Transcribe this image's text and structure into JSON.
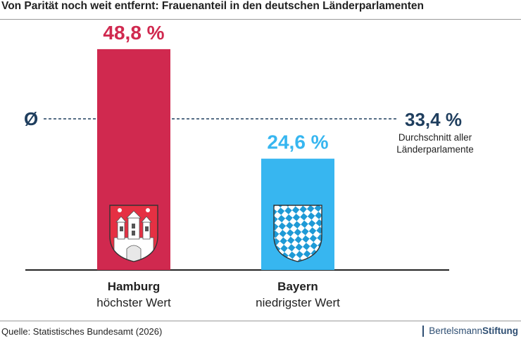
{
  "title": "Von Parität noch weit entfernt: Frauenanteil in den deutschen Länderparlamenten",
  "source": "Quelle: Statistisches Bundesamt (2026)",
  "brand": {
    "part1": "Bertelsmann",
    "part2": "Stiftung"
  },
  "colors": {
    "hamburg": "#d0294f",
    "bayern": "#37b6f0",
    "average": "#1f3e5e",
    "axis": "#222222"
  },
  "chart_data": {
    "type": "bar",
    "categories": [
      "Hamburg",
      "Bayern"
    ],
    "sublabels": [
      "höchster Wert",
      "niedrigster Wert"
    ],
    "values": [
      48.8,
      24.6
    ],
    "value_labels": [
      "48,8 %",
      "24,6 %"
    ],
    "bar_colors": [
      "#d0294f",
      "#37b6f0"
    ],
    "icons": [
      "hamburg-coat-of-arms-icon",
      "bavaria-coat-of-arms-icon"
    ],
    "average": {
      "value": 33.4,
      "symbol": "Ø",
      "label": "33,4 %",
      "caption_line1": "Durchschnitt aller",
      "caption_line2": "Länderparlamente"
    },
    "ylim": [
      0,
      55
    ],
    "grid": false
  }
}
